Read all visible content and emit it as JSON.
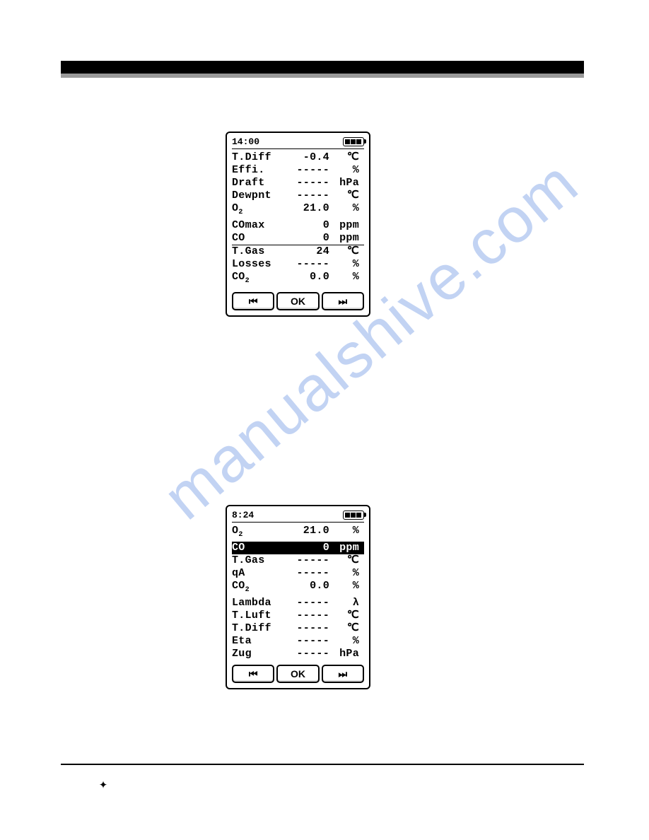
{
  "watermark": "manualshive.com",
  "screen1": {
    "time": "14:00",
    "rows": [
      {
        "label": "T.Diff",
        "value": "-0.4",
        "unit": "℃"
      },
      {
        "label": "Effi.",
        "value": "-----",
        "unit": "%"
      },
      {
        "label": "Draft",
        "value": "-----",
        "unit": "hPa"
      },
      {
        "label": "Dewpnt",
        "value": "-----",
        "unit": "℃"
      },
      {
        "label": "O₂",
        "value": "21.0",
        "unit": "%"
      },
      {
        "label": "COmax",
        "value": "0",
        "unit": "ppm"
      },
      {
        "label": "CO",
        "value": "0",
        "unit": "ppm",
        "underlined": true
      },
      {
        "label": "T.Gas",
        "value": "24",
        "unit": "℃"
      },
      {
        "label": "Losses",
        "value": "-----",
        "unit": "%"
      },
      {
        "label": "CO₂",
        "value": "0.0",
        "unit": "%"
      }
    ],
    "buttons": {
      "prev": "⏮",
      "ok": "OK",
      "next": "⏭"
    }
  },
  "screen2": {
    "time": "8:24",
    "rows": [
      {
        "label": "O₂",
        "value": "21.0",
        "unit": "%"
      },
      {
        "label": "CO",
        "value": "0",
        "unit": "ppm",
        "highlighted": true
      },
      {
        "label": "T.Gas",
        "value": "-----",
        "unit": "℃"
      },
      {
        "label": "qA",
        "value": "-----",
        "unit": "%"
      },
      {
        "label": "CO₂",
        "value": "0.0",
        "unit": "%"
      },
      {
        "label": "Lambda",
        "value": "-----",
        "unit": "λ"
      },
      {
        "label": "T.Luft",
        "value": "-----",
        "unit": "℃"
      },
      {
        "label": "T.Diff",
        "value": "-----",
        "unit": "℃"
      },
      {
        "label": "Eta",
        "value": "-----",
        "unit": "%"
      },
      {
        "label": "Zug",
        "value": "-----",
        "unit": "hPa"
      }
    ],
    "buttons": {
      "prev": "⏮",
      "ok": "OK",
      "next": "⏭"
    }
  }
}
